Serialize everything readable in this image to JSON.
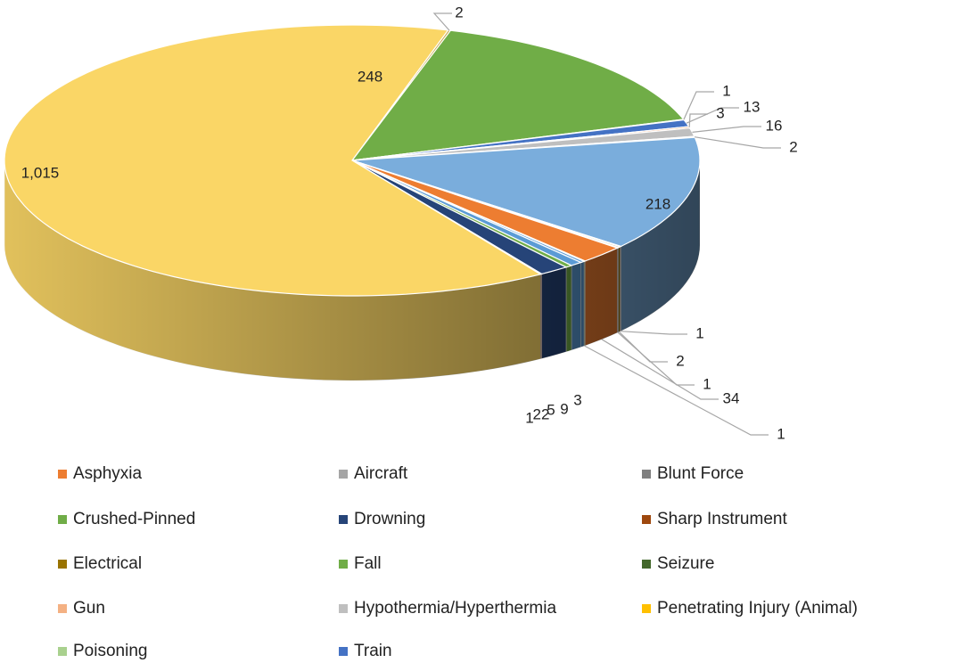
{
  "chart_data": {
    "type": "pie",
    "values": [
      2,
      248,
      1,
      13,
      3,
      16,
      2,
      218,
      1,
      2,
      1,
      34,
      1,
      3,
      9,
      5,
      22,
      1,
      1015
    ],
    "value_labels": [
      "2",
      "248",
      "1",
      "13",
      "3",
      "16",
      "2",
      "218",
      "1",
      "2",
      "1",
      "34",
      "1",
      "3",
      "9",
      "5",
      "22",
      "1",
      "1,015"
    ],
    "colors": [
      "#c9a64a",
      "#70ad47",
      "#9e480e",
      "#4472c4",
      "#f4b183",
      "#bfbfbf",
      "#a5a5a5",
      "#7aaddc",
      "#843c0c",
      "#997300",
      "#636363",
      "#ed7d31",
      "#a9d18e",
      "#5b9bd5",
      "#5b9bd5",
      "#70ad47",
      "#264478",
      "#843c0c",
      "#fad666"
    ],
    "legend": [
      {
        "name": "Asphyxia",
        "color": "#ed7d31"
      },
      {
        "name": "Aircraft",
        "color": "#a5a5a5"
      },
      {
        "name": "Blunt Force",
        "color": "#7f7f7f"
      },
      {
        "name": "Crushed-Pinned",
        "color": "#70ad47"
      },
      {
        "name": "Drowning",
        "color": "#264478"
      },
      {
        "name": "Sharp Instrument",
        "color": "#9e480e"
      },
      {
        "name": "Electrical",
        "color": "#997300"
      },
      {
        "name": "Fall",
        "color": "#70ad47"
      },
      {
        "name": "Seizure",
        "color": "#43682b"
      },
      {
        "name": "Gun",
        "color": "#f4b183"
      },
      {
        "name": "Hypothermia/Hyperthermia",
        "color": "#bfbfbf"
      },
      {
        "name": "Penetrating Injury (Animal)",
        "color": "#ffc000"
      },
      {
        "name": "Poisoning",
        "color": "#a9d18e"
      },
      {
        "name": "Train",
        "color": "#4472c4"
      }
    ]
  }
}
